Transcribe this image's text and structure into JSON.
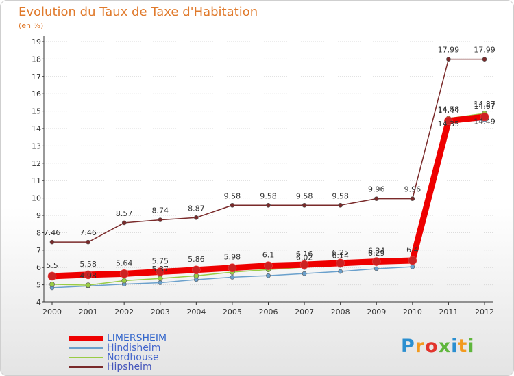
{
  "chart_data": {
    "type": "line",
    "title": "Evolution du Taux de Taxe d'Habitation",
    "subtitle": "(en %)",
    "x": [
      "2000",
      "2001",
      "2002",
      "2003",
      "2004",
      "2005",
      "2006",
      "2007",
      "2008",
      "2009",
      "2010",
      "2011",
      "2012"
    ],
    "yticks": [
      "4",
      "5",
      "6",
      "7",
      "8",
      "9",
      "10",
      "11",
      "12",
      "13",
      "14",
      "15",
      "16",
      "17",
      "18",
      "19"
    ],
    "ylim": [
      4,
      19
    ],
    "grid": "horizontal",
    "legend_position": "bottom-left",
    "series": [
      {
        "name": "LIMERSHEIM",
        "color": "#ee0000",
        "values": [
          5.5,
          5.58,
          5.64,
          5.75,
          5.86,
          5.98,
          6.1,
          6.16,
          6.25,
          6.34,
          6.4,
          14.44,
          14.67
        ],
        "labels": [
          "5.5",
          "5.58",
          "5.64",
          "5.75",
          "5.86",
          "5.98",
          "6.1",
          "6.16",
          "6.25",
          "6.34",
          "6.4",
          "14.44",
          "14.67"
        ]
      },
      {
        "name": "Hindisheim",
        "color": "#6aa0cc",
        "values": [
          4.83,
          4.93,
          5.04,
          5.12,
          5.3,
          5.44,
          5.53,
          5.65,
          5.77,
          5.93,
          6.04,
          14.35,
          14.49
        ],
        "labels": [
          "",
          "",
          "",
          "",
          "",
          "",
          "",
          "",
          "",
          "",
          "",
          "14.35",
          "14.49"
        ]
      },
      {
        "name": "Nordhouse",
        "color": "#99cc44",
        "values": [
          5.03,
          4.98,
          5.24,
          5.37,
          5.52,
          5.73,
          5.88,
          6.02,
          6.14,
          6.29,
          6.4,
          14.58,
          14.87
        ],
        "labels": [
          "",
          "4.98",
          "",
          "5.37",
          "",
          "",
          "",
          "6.02",
          "6.14",
          "6.29",
          "",
          "14.58",
          "14.87"
        ]
      },
      {
        "name": "Hipsheim",
        "color": "#7a2a2a",
        "values": [
          7.46,
          7.46,
          8.57,
          8.74,
          8.87,
          9.58,
          9.58,
          9.58,
          9.58,
          9.96,
          9.96,
          17.99,
          17.99
        ],
        "labels": [
          "7.46",
          "7.46",
          "8.57",
          "8.74",
          "8.87",
          "9.58",
          "9.58",
          "9.58",
          "9.58",
          "9.96",
          "9.96",
          "17.99",
          "17.99"
        ]
      }
    ]
  },
  "brand": {
    "letters": [
      {
        "ch": "P",
        "color": "#2b8fd0"
      },
      {
        "ch": "r",
        "color": "#f39a1e"
      },
      {
        "ch": "o",
        "color": "#e2342c"
      },
      {
        "ch": "x",
        "color": "#5fb63c"
      },
      {
        "ch": "i",
        "color": "#2b8fd0"
      },
      {
        "ch": "t",
        "color": "#f39a1e"
      },
      {
        "ch": "i",
        "color": "#5fb63c"
      }
    ]
  }
}
